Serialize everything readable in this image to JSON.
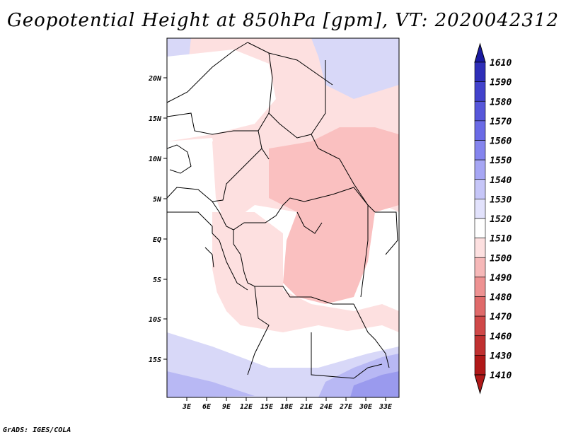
{
  "title": "Geopotential Height at 850hPa [gpm], VT: 2020042312",
  "credit": "GrADS: IGES/COLA",
  "map": {
    "lat_labels": [
      "20N",
      "15N",
      "10N",
      "5N",
      "EQ",
      "5S",
      "10S",
      "15S"
    ],
    "lon_labels": [
      "3E",
      "6E",
      "9E",
      "12E",
      "15E",
      "18E",
      "21E",
      "24E",
      "27E",
      "30E",
      "33E"
    ]
  },
  "colorbar": {
    "labels": [
      "1610",
      "1590",
      "1580",
      "1570",
      "1560",
      "1550",
      "1540",
      "1530",
      "1520",
      "1510",
      "1500",
      "1490",
      "1480",
      "1470",
      "1460",
      "1430",
      "1410"
    ],
    "colors": {
      "deep_blue": "#1a1aa0",
      "mid_blue": "#6a6ae6",
      "light_blue": "#d8d8f8",
      "white": "#ffffff",
      "light_pink": "#fde0e0",
      "pink": "#fac0c0",
      "deep_red": "#b01818"
    }
  }
}
